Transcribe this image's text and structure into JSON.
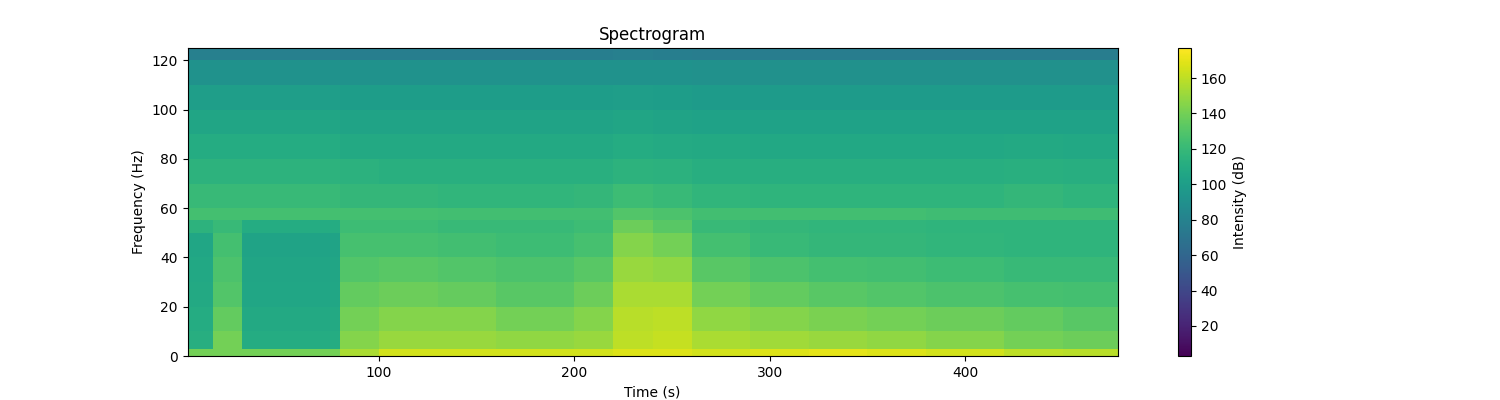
{
  "chart_data": {
    "type": "heatmap",
    "title": "Spectrogram",
    "x_label": "Time (s)",
    "y_label": "Frequency (Hz)",
    "xlim": [
      2,
      478
    ],
    "ylim": [
      0,
      125
    ],
    "xticks": [
      100,
      200,
      300,
      400
    ],
    "yticks": [
      0,
      20,
      40,
      60,
      80,
      100,
      120
    ],
    "x_edges": [
      2,
      15,
      30,
      50,
      80,
      100,
      130,
      160,
      200,
      220,
      240,
      260,
      290,
      320,
      350,
      380,
      420,
      450,
      478
    ],
    "y_edges": [
      0,
      3,
      10,
      20,
      30,
      40,
      50,
      55,
      60,
      70,
      80,
      90,
      100,
      110,
      120,
      125
    ],
    "cells": [
      [
        140,
        140,
        140,
        140,
        155,
        165,
        165,
        165,
        165,
        168,
        168,
        165,
        168,
        170,
        168,
        165,
        160,
        158
      ],
      [
        112,
        140,
        110,
        110,
        145,
        150,
        150,
        148,
        150,
        160,
        162,
        155,
        152,
        150,
        148,
        145,
        140,
        138
      ],
      [
        110,
        135,
        108,
        108,
        140,
        145,
        145,
        140,
        145,
        158,
        160,
        148,
        145,
        142,
        140,
        138,
        135,
        132
      ],
      [
        108,
        130,
        106,
        106,
        135,
        138,
        136,
        132,
        138,
        155,
        155,
        140,
        135,
        132,
        130,
        128,
        126,
        125
      ],
      [
        107,
        128,
        105,
        105,
        130,
        132,
        130,
        128,
        132,
        150,
        148,
        132,
        128,
        125,
        124,
        122,
        120,
        120
      ],
      [
        106,
        125,
        104,
        104,
        126,
        126,
        124,
        122,
        126,
        145,
        140,
        125,
        120,
        118,
        118,
        117,
        116,
        116
      ],
      [
        115,
        120,
        110,
        110,
        122,
        122,
        120,
        120,
        122,
        138,
        132,
        120,
        118,
        117,
        117,
        116,
        116,
        116
      ],
      [
        125,
        125,
        125,
        125,
        125,
        125,
        124,
        124,
        124,
        130,
        128,
        124,
        124,
        124,
        124,
        123,
        123,
        123
      ],
      [
        120,
        120,
        120,
        120,
        118,
        118,
        117,
        117,
        118,
        122,
        120,
        117,
        116,
        116,
        116,
        116,
        118,
        116
      ],
      [
        115,
        115,
        115,
        115,
        114,
        113,
        113,
        113,
        113,
        115,
        114,
        112,
        112,
        112,
        112,
        112,
        113,
        112
      ],
      [
        110,
        110,
        110,
        110,
        108,
        108,
        108,
        108,
        108,
        110,
        109,
        108,
        107,
        107,
        107,
        107,
        108,
        107
      ],
      [
        105,
        105,
        105,
        105,
        104,
        104,
        104,
        104,
        104,
        105,
        104,
        103,
        103,
        103,
        103,
        103,
        103,
        103
      ],
      [
        100,
        100,
        100,
        100,
        99,
        99,
        99,
        99,
        99,
        100,
        99,
        98,
        98,
        98,
        98,
        98,
        98,
        98
      ],
      [
        92,
        92,
        92,
        92,
        91,
        91,
        91,
        91,
        91,
        92,
        91,
        90,
        90,
        90,
        90,
        90,
        90,
        90
      ],
      [
        78,
        78,
        78,
        78,
        77,
        77,
        77,
        77,
        77,
        78,
        77,
        76,
        76,
        76,
        76,
        76,
        76,
        76
      ]
    ],
    "colorbar": {
      "label": "Intensity (dB)",
      "range": [
        3,
        177
      ],
      "ticks": [
        20,
        40,
        60,
        80,
        100,
        120,
        140,
        160
      ]
    }
  }
}
